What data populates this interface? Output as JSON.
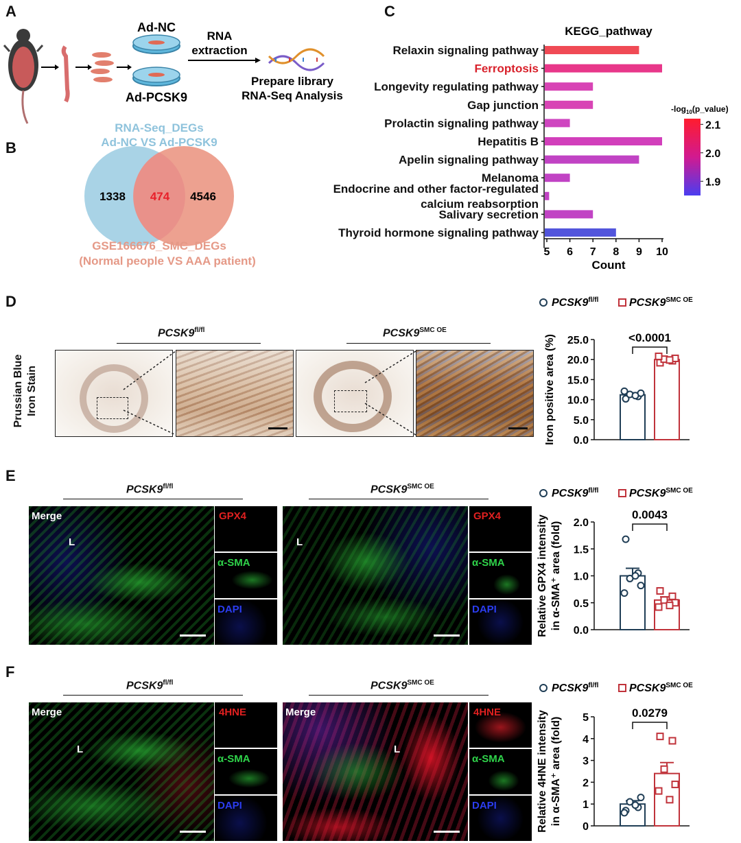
{
  "panels": {
    "A": "A",
    "B": "B",
    "C": "C",
    "D": "D",
    "E": "E",
    "F": "F"
  },
  "panelA": {
    "dish_top": "Ad-NC",
    "dish_bottom": "Ad-PCSK9",
    "arrow_label_1": "RNA",
    "arrow_label_2": "extraction",
    "result_1": "Prepare library",
    "result_2": "RNA-Seq Analysis"
  },
  "panelB": {
    "title_1": "RNA-Seq_DEGs",
    "title_2": "Ad-NC VS Ad-PCSK9",
    "left_count": "1338",
    "overlap_count": "474",
    "right_count": "4546",
    "bottom_1": "GSE166676_SMC_DEGs",
    "bottom_2": "(Normal people VS AAA patient)",
    "colors": {
      "left": "#a9d3e6",
      "right": "#eda190",
      "left_text": "#8fc3dc",
      "right_text": "#e59987",
      "overlap_text": "#e8202a"
    }
  },
  "panelC": {
    "chart_data": {
      "type": "bar",
      "orientation": "horizontal",
      "title": "KEGG_pathway",
      "xlabel": "Count",
      "xlim": [
        5,
        10
      ],
      "xticks": [
        "5",
        "6",
        "7",
        "8",
        "9",
        "10"
      ],
      "categories": [
        "Relaxin signaling pathway",
        "Ferroptosis",
        "Longevity regulating pathway",
        "Gap junction",
        "Prolactin signaling pathway",
        "Hepatitis B",
        "Apelin signaling pathway",
        "Melanoma",
        "Endocrine and other factor-regulated calcium reabsorption",
        "Salivary secretion",
        "Thyroid hormone signaling pathway"
      ],
      "label_lines": [
        [
          "Relaxin signaling pathway"
        ],
        [
          "Ferroptosis"
        ],
        [
          "Longevity regulating pathway"
        ],
        [
          "Gap junction"
        ],
        [
          "Prolactin signaling pathway"
        ],
        [
          "Hepatitis B"
        ],
        [
          "Apelin signaling pathway"
        ],
        [
          "Melanoma"
        ],
        [
          "Endocrine and other factor-regulated",
          "calcium reabsorption"
        ],
        [
          "Salivary secretion"
        ],
        [
          "Thyroid hormone signaling pathway"
        ]
      ],
      "values": [
        9,
        10,
        7,
        7,
        6,
        10,
        9,
        6,
        5.1,
        7,
        8
      ],
      "highlight": "Ferroptosis",
      "colors": [
        "#f04a55",
        "#e8378a",
        "#d844b5",
        "#d844b5",
        "#cf46c0",
        "#d23fbb",
        "#c143c4",
        "#c143c4",
        "#c143c4",
        "#c143c4",
        "#5255dc"
      ],
      "colorbar": {
        "title": "-log10(p_value)",
        "ticks": [
          "2.1",
          "2.0",
          "1.9"
        ],
        "range": [
          1.85,
          2.12
        ],
        "colors": [
          "#ff1c2e",
          "#d11a90",
          "#4a3df0"
        ]
      }
    }
  },
  "panelD": {
    "side_label_1": "Prussian Blue",
    "side_label_2": "Iron Stain",
    "group_fl": "PCSK9",
    "group_fl_sup": "fl/fl",
    "group_oe": "PCSK9",
    "group_oe_sup": "SMC OE",
    "chart_data": {
      "type": "bar",
      "ylabel": "Iron positive area (%)",
      "ylim": [
        0,
        25
      ],
      "yticks": [
        "0.0",
        "5.0",
        "10.0",
        "15.0",
        "20.0",
        "25.0"
      ],
      "pvalue": "<0.0001",
      "series": [
        {
          "name": "PCSK9 fl/fl",
          "mean": 11.2,
          "sem": 0.5,
          "points": [
            10.2,
            10.8,
            11.3,
            11.6,
            12.1,
            11.0
          ]
        },
        {
          "name": "PCSK9 SMC OE",
          "mean": 20.0,
          "sem": 0.4,
          "points": [
            19.2,
            19.7,
            20.1,
            20.3,
            20.8,
            19.9
          ]
        }
      ]
    }
  },
  "panelE": {
    "group_fl": "PCSK9",
    "group_fl_sup": "fl/fl",
    "group_oe": "PCSK9",
    "group_oe_sup": "SMC OE",
    "merge": "Merge",
    "lumen": "L",
    "ch1": "GPX4",
    "ch2": "α-SMA",
    "ch3": "DAPI",
    "chart_data": {
      "type": "bar",
      "ylabel_1": "Relative GPX4 intensity",
      "ylabel_2": "in α-SMA⁺ area (fold)",
      "ylim": [
        0,
        2
      ],
      "yticks": [
        "0.0",
        "0.5",
        "1.0",
        "1.5",
        "2.0"
      ],
      "pvalue": "0.0043",
      "series": [
        {
          "name": "PCSK9 fl/fl",
          "mean": 1.0,
          "sem": 0.14,
          "points": [
            1.68,
            1.05,
            0.95,
            0.82,
            0.68,
            1.0
          ]
        },
        {
          "name": "PCSK9 SMC OE",
          "mean": 0.55,
          "sem": 0.06,
          "points": [
            0.72,
            0.62,
            0.55,
            0.5,
            0.42,
            0.45
          ]
        }
      ]
    }
  },
  "panelF": {
    "group_fl": "PCSK9",
    "group_fl_sup": "fl/fl",
    "group_oe": "PCSK9",
    "group_oe_sup": "SMC OE",
    "merge": "Merge",
    "lumen": "L",
    "ch1": "4HNE",
    "ch2": "α-SMA",
    "ch3": "DAPI",
    "chart_data": {
      "type": "bar",
      "ylabel_1": "Relative 4HNE intensity",
      "ylabel_2": "in α-SMA⁺ area (fold)",
      "ylim": [
        0,
        5
      ],
      "yticks": [
        "0",
        "1",
        "2",
        "3",
        "4",
        "5"
      ],
      "pvalue": "0.0279",
      "series": [
        {
          "name": "PCSK9 fl/fl",
          "mean": 1.0,
          "sem": 0.15,
          "points": [
            0.7,
            0.85,
            1.1,
            1.3,
            0.6,
            0.95
          ]
        },
        {
          "name": "PCSK9 SMC OE",
          "mean": 2.4,
          "sem": 0.5,
          "points": [
            4.1,
            3.9,
            2.6,
            1.9,
            1.6,
            1.2
          ]
        }
      ]
    }
  }
}
